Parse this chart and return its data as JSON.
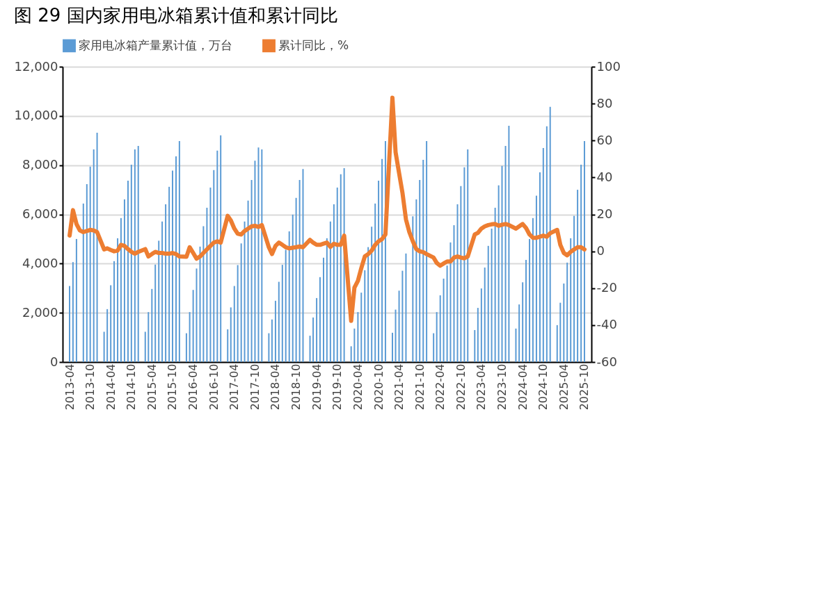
{
  "chart_data": {
    "type": "bar",
    "title": "图 29 国内家用电冰箱累计值和累计同比",
    "x": [
      "2013-04",
      "2013-05",
      "2013-06",
      "2013-07",
      "2013-08",
      "2013-09",
      "2013-10",
      "2013-11",
      "2013-12",
      "2014-02",
      "2014-03",
      "2014-04",
      "2014-05",
      "2014-06",
      "2014-07",
      "2014-08",
      "2014-09",
      "2014-10",
      "2014-11",
      "2014-12",
      "2015-02",
      "2015-03",
      "2015-04",
      "2015-05",
      "2015-06",
      "2015-07",
      "2015-08",
      "2015-09",
      "2015-10",
      "2015-11",
      "2015-12",
      "2016-02",
      "2016-03",
      "2016-04",
      "2016-05",
      "2016-06",
      "2016-07",
      "2016-08",
      "2016-09",
      "2016-10",
      "2016-11",
      "2016-12",
      "2017-02",
      "2017-03",
      "2017-04",
      "2017-05",
      "2017-06",
      "2017-07",
      "2017-08",
      "2017-09",
      "2017-10",
      "2017-11",
      "2017-12",
      "2018-02",
      "2018-03",
      "2018-04",
      "2018-05",
      "2018-06",
      "2018-07",
      "2018-08",
      "2018-09",
      "2018-10",
      "2018-11",
      "2018-12",
      "2019-02",
      "2019-03",
      "2019-04",
      "2019-05",
      "2019-06",
      "2019-07",
      "2019-08",
      "2019-09",
      "2019-10",
      "2019-11",
      "2019-12",
      "2020-02",
      "2020-03",
      "2020-04",
      "2020-05",
      "2020-06",
      "2020-07",
      "2020-08",
      "2020-09",
      "2020-10",
      "2020-11",
      "2020-12",
      "2021-02",
      "2021-03",
      "2021-04",
      "2021-05",
      "2021-06",
      "2021-07",
      "2021-08",
      "2021-09",
      "2021-10",
      "2021-11",
      "2021-12",
      "2022-02",
      "2022-03",
      "2022-04",
      "2022-05",
      "2022-06",
      "2022-07",
      "2022-08",
      "2022-09",
      "2022-10",
      "2022-11",
      "2022-12",
      "2023-02",
      "2023-03",
      "2023-04",
      "2023-05",
      "2023-06",
      "2023-07",
      "2023-08",
      "2023-09",
      "2023-10",
      "2023-11",
      "2023-12",
      "2024-02",
      "2024-03",
      "2024-04",
      "2024-05",
      "2024-06",
      "2024-07",
      "2024-08",
      "2024-09",
      "2024-10",
      "2024-11",
      "2024-12",
      "2025-02",
      "2025-03",
      "2025-04",
      "2025-05",
      "2025-06",
      "2025-07",
      "2025-08",
      "2025-09",
      "2025-10"
    ],
    "series": [
      {
        "name": "家用电冰箱产量累计值，万台",
        "type": "bar",
        "color": "#5b9bd5",
        "values": [
          3090,
          4060,
          5000,
          null,
          6440,
          7230,
          7940,
          8640,
          9320,
          1230,
          2150,
          3120,
          4100,
          5030,
          5850,
          6610,
          7370,
          8020,
          8640,
          8780,
          1230,
          2030,
          2970,
          3960,
          4930,
          5710,
          6410,
          7120,
          7780,
          8360,
          8980,
          1170,
          2030,
          2930,
          3800,
          4690,
          5520,
          6270,
          7090,
          7800,
          8590,
          9210,
          1330,
          2220,
          3090,
          3940,
          4820,
          5710,
          6560,
          7400,
          8180,
          8720,
          8640,
          1170,
          1730,
          2490,
          3260,
          3950,
          4560,
          5310,
          5990,
          6670,
          7400,
          7840,
          1070,
          1810,
          2600,
          3450,
          4240,
          5030,
          5710,
          6410,
          7090,
          7630,
          7880,
          640,
          1360,
          2030,
          2820,
          3730,
          4670,
          5500,
          6440,
          7370,
          8250,
          8980,
          1190,
          2130,
          2900,
          3710,
          4410,
          null,
          5920,
          6610,
          7400,
          8220,
          8980,
          1170,
          2030,
          2710,
          3390,
          3920,
          4860,
          5560,
          6410,
          7150,
          7910,
          8640,
          1300,
          2200,
          2990,
          3840,
          4720,
          5420,
          6270,
          7180,
          7970,
          8780,
          9600,
          1360,
          2340,
          3240,
          4150,
          5000,
          5850,
          6760,
          7710,
          8700,
          9580,
          10370,
          1500,
          2410,
          3190,
          4040,
          5030,
          5940,
          7000,
          8020,
          8980
        ]
      },
      {
        "name": "累计同比，%",
        "type": "line",
        "axis": "y2",
        "color": "#ed7d31",
        "values": [
          8.5,
          22.3,
          14.8,
          11.3,
          10.4,
          11,
          11.6,
          11.3,
          10.4,
          1,
          1.6,
          0.7,
          0,
          0.4,
          3.5,
          2.9,
          1.2,
          -0.3,
          -1.3,
          -0.3,
          1.2,
          -2.8,
          -1.5,
          -0.3,
          -0.9,
          -0.9,
          -1.3,
          -1.3,
          -0.9,
          -1.5,
          -2.8,
          -3,
          2.2,
          -0.9,
          -4,
          -2.8,
          -0.9,
          1,
          2.9,
          4.7,
          5.4,
          4.7,
          19.2,
          16.7,
          12.3,
          9.5,
          9.1,
          11,
          12.3,
          13.5,
          13.8,
          13.2,
          14.2,
          2.2,
          -1.5,
          2.9,
          4.7,
          3.5,
          2.2,
          1.6,
          1.9,
          2.2,
          2.6,
          2.2,
          6.2,
          4.7,
          3.5,
          3.5,
          4.1,
          4.7,
          2.4,
          4.1,
          3.5,
          3.5,
          8.5,
          -37.7,
          -19.7,
          -16,
          -9.1,
          -2.8,
          -1.5,
          0.4,
          3.5,
          5.4,
          6.6,
          9.1,
          83.2,
          53.7,
          42.4,
          31.7,
          17.3,
          10.4,
          5.4,
          1.2,
          0,
          -0.5,
          -1.5,
          -3.4,
          -6.3,
          -7.8,
          -6.6,
          -5.5,
          -5.5,
          -3.4,
          -2.8,
          -3.4,
          -3.8,
          -2.8,
          9.1,
          10,
          12.3,
          13.5,
          14.2,
          14.6,
          14.8,
          13.8,
          14.4,
          14.8,
          14.2,
          12.3,
          13.5,
          14.8,
          12.6,
          9.1,
          7.3,
          7.3,
          7.9,
          8.5,
          7.9,
          9.8,
          11.6,
          3.5,
          -0.9,
          -2.2,
          -0.3,
          1,
          2.2,
          2.2,
          1
        ]
      }
    ],
    "xlim": [
      "2013-03",
      "2025-11"
    ],
    "xticks": [
      "2013-04",
      "2013-10",
      "2014-04",
      "2014-10",
      "2015-04",
      "2015-10",
      "2016-04",
      "2016-10",
      "2017-04",
      "2017-10",
      "2018-04",
      "2018-10",
      "2019-04",
      "2019-10",
      "2020-04",
      "2020-10",
      "2021-04",
      "2021-10",
      "2022-04",
      "2022-10",
      "2023-04",
      "2023-10",
      "2024-04",
      "2024-10",
      "2025-04",
      "2025-10"
    ],
    "ylim": [
      0,
      12000
    ],
    "yticks": [
      0,
      {
        "value": 2000,
        "label": "2,000"
      },
      {
        "value": 4000,
        "label": "4,000"
      },
      {
        "value": 6000,
        "label": "6,000"
      },
      {
        "value": 8000,
        "label": "8,000"
      },
      {
        "value": 10000,
        "label": "10,000"
      },
      {
        "value": 12000,
        "label": "12,000"
      }
    ],
    "y2lim": [
      -60,
      100
    ],
    "y2ticks": [
      -60,
      -40,
      -20,
      0,
      20,
      40,
      60,
      80,
      100
    ],
    "grid": "y",
    "legend": "top"
  }
}
